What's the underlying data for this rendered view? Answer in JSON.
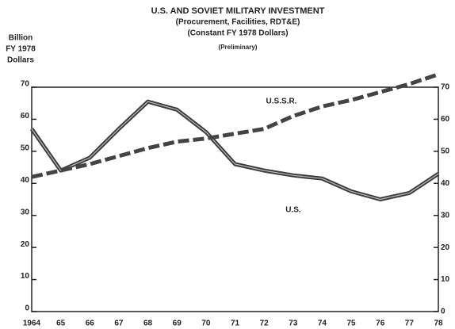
{
  "chart_data": {
    "type": "line",
    "title": "U.S. AND SOVIET MILITARY INVESTMENT",
    "subtitle": [
      "(Procurement, Facilities, RDT&E)",
      "(Constant FY 1978 Dollars)",
      "(Preliminary)"
    ],
    "ylabel": [
      "Billion",
      "FY 1978",
      "Dollars"
    ],
    "categories": [
      "1964",
      "65",
      "66",
      "67",
      "68",
      "69",
      "70",
      "71",
      "72",
      "73",
      "74",
      "75",
      "76",
      "77",
      "78"
    ],
    "series": [
      {
        "name": "U.S.",
        "color": "#3a3a3a",
        "dash": false,
        "values": [
          57,
          44,
          48,
          57,
          65.5,
          63,
          56,
          46,
          44,
          42.5,
          41.5,
          37.5,
          35,
          37,
          43
        ]
      },
      {
        "name": "U.S.S.R.",
        "color": "#444444",
        "dash": true,
        "values": [
          42,
          44,
          46,
          48.5,
          51,
          53,
          54,
          55.5,
          57,
          61,
          64,
          66,
          68.5,
          71,
          74
        ]
      }
    ],
    "ylim": [
      0,
      70
    ],
    "yticks": [
      0,
      10,
      20,
      30,
      40,
      50,
      60,
      70
    ],
    "y2ticks": [
      0,
      10,
      20,
      30,
      40,
      50,
      60,
      70
    ]
  }
}
